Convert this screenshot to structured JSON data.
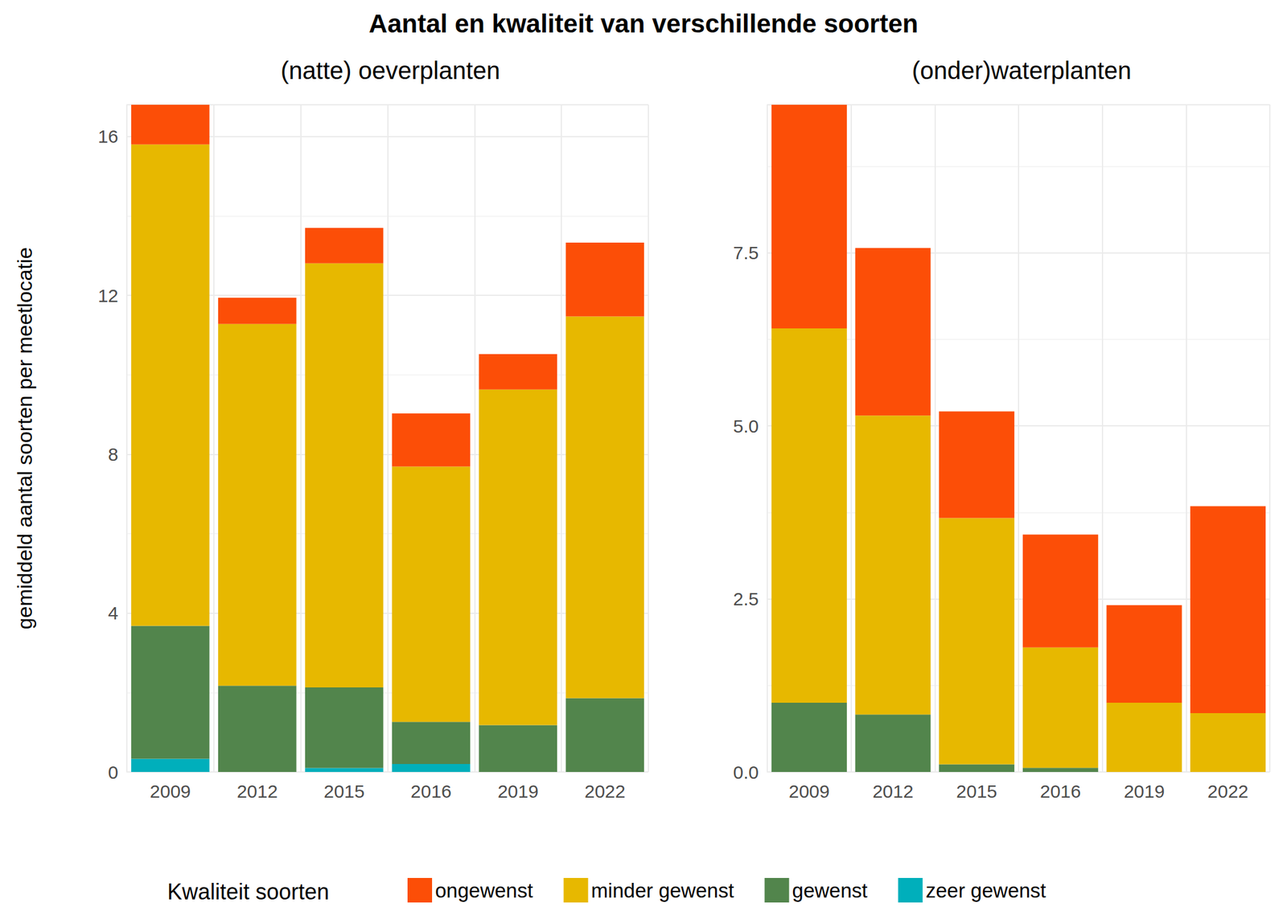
{
  "chart_data": [
    {
      "type": "bar",
      "title": "Aantal en kwaliteit van verschillende soorten",
      "subtitle": "(natte) oeverplanten",
      "y_label": "gemiddeld aantal soorten per meetlocatie",
      "legend_title": "Kwaliteit soorten",
      "legend": "bottom",
      "stacked": true,
      "grid": true,
      "categories": [
        "2009",
        "2012",
        "2015",
        "2016",
        "2019",
        "2022"
      ],
      "ylim": [
        0,
        16.8
      ],
      "yticks": [
        0,
        4,
        8,
        12,
        16
      ],
      "series": [
        {
          "name": "ongewenst",
          "color": "#FC4E07",
          "values": [
            1.0,
            0.66,
            0.89,
            1.34,
            0.89,
            1.86
          ]
        },
        {
          "name": "minder gewenst",
          "color": "#E7B800",
          "values": [
            12.12,
            9.11,
            10.68,
            6.43,
            8.45,
            9.61
          ]
        },
        {
          "name": "gewenst",
          "color": "#52854C",
          "values": [
            3.35,
            2.17,
            2.03,
            1.06,
            1.18,
            1.86
          ]
        },
        {
          "name": "zeer gewenst",
          "color": "#00AFBB",
          "values": [
            0.33,
            0,
            0.1,
            0.2,
            0,
            0
          ]
        }
      ]
    },
    {
      "type": "bar",
      "subtitle": "(onder)waterplanten",
      "stacked": true,
      "grid": true,
      "categories": [
        "2009",
        "2012",
        "2015",
        "2016",
        "2019",
        "2022"
      ],
      "ylim": [
        0,
        9.64
      ],
      "yticks": [
        {
          "value": 0,
          "label": "0.0"
        },
        2.5,
        {
          "value": 5,
          "label": "5.0"
        },
        7.5
      ],
      "series": [
        {
          "name": "ongewenst",
          "color": "#FC4E07",
          "values": [
            3.23,
            2.42,
            1.54,
            1.63,
            1.41,
            2.99
          ]
        },
        {
          "name": "minder gewenst",
          "color": "#E7B800",
          "values": [
            5.41,
            4.32,
            3.56,
            1.74,
            1.0,
            0.85
          ]
        },
        {
          "name": "gewenst",
          "color": "#52854C",
          "values": [
            1.0,
            0.83,
            0.11,
            0.06,
            0,
            0
          ]
        },
        {
          "name": "zeer gewenst",
          "color": "#00AFBB",
          "values": [
            0,
            0,
            0,
            0,
            0,
            0
          ]
        }
      ]
    }
  ]
}
